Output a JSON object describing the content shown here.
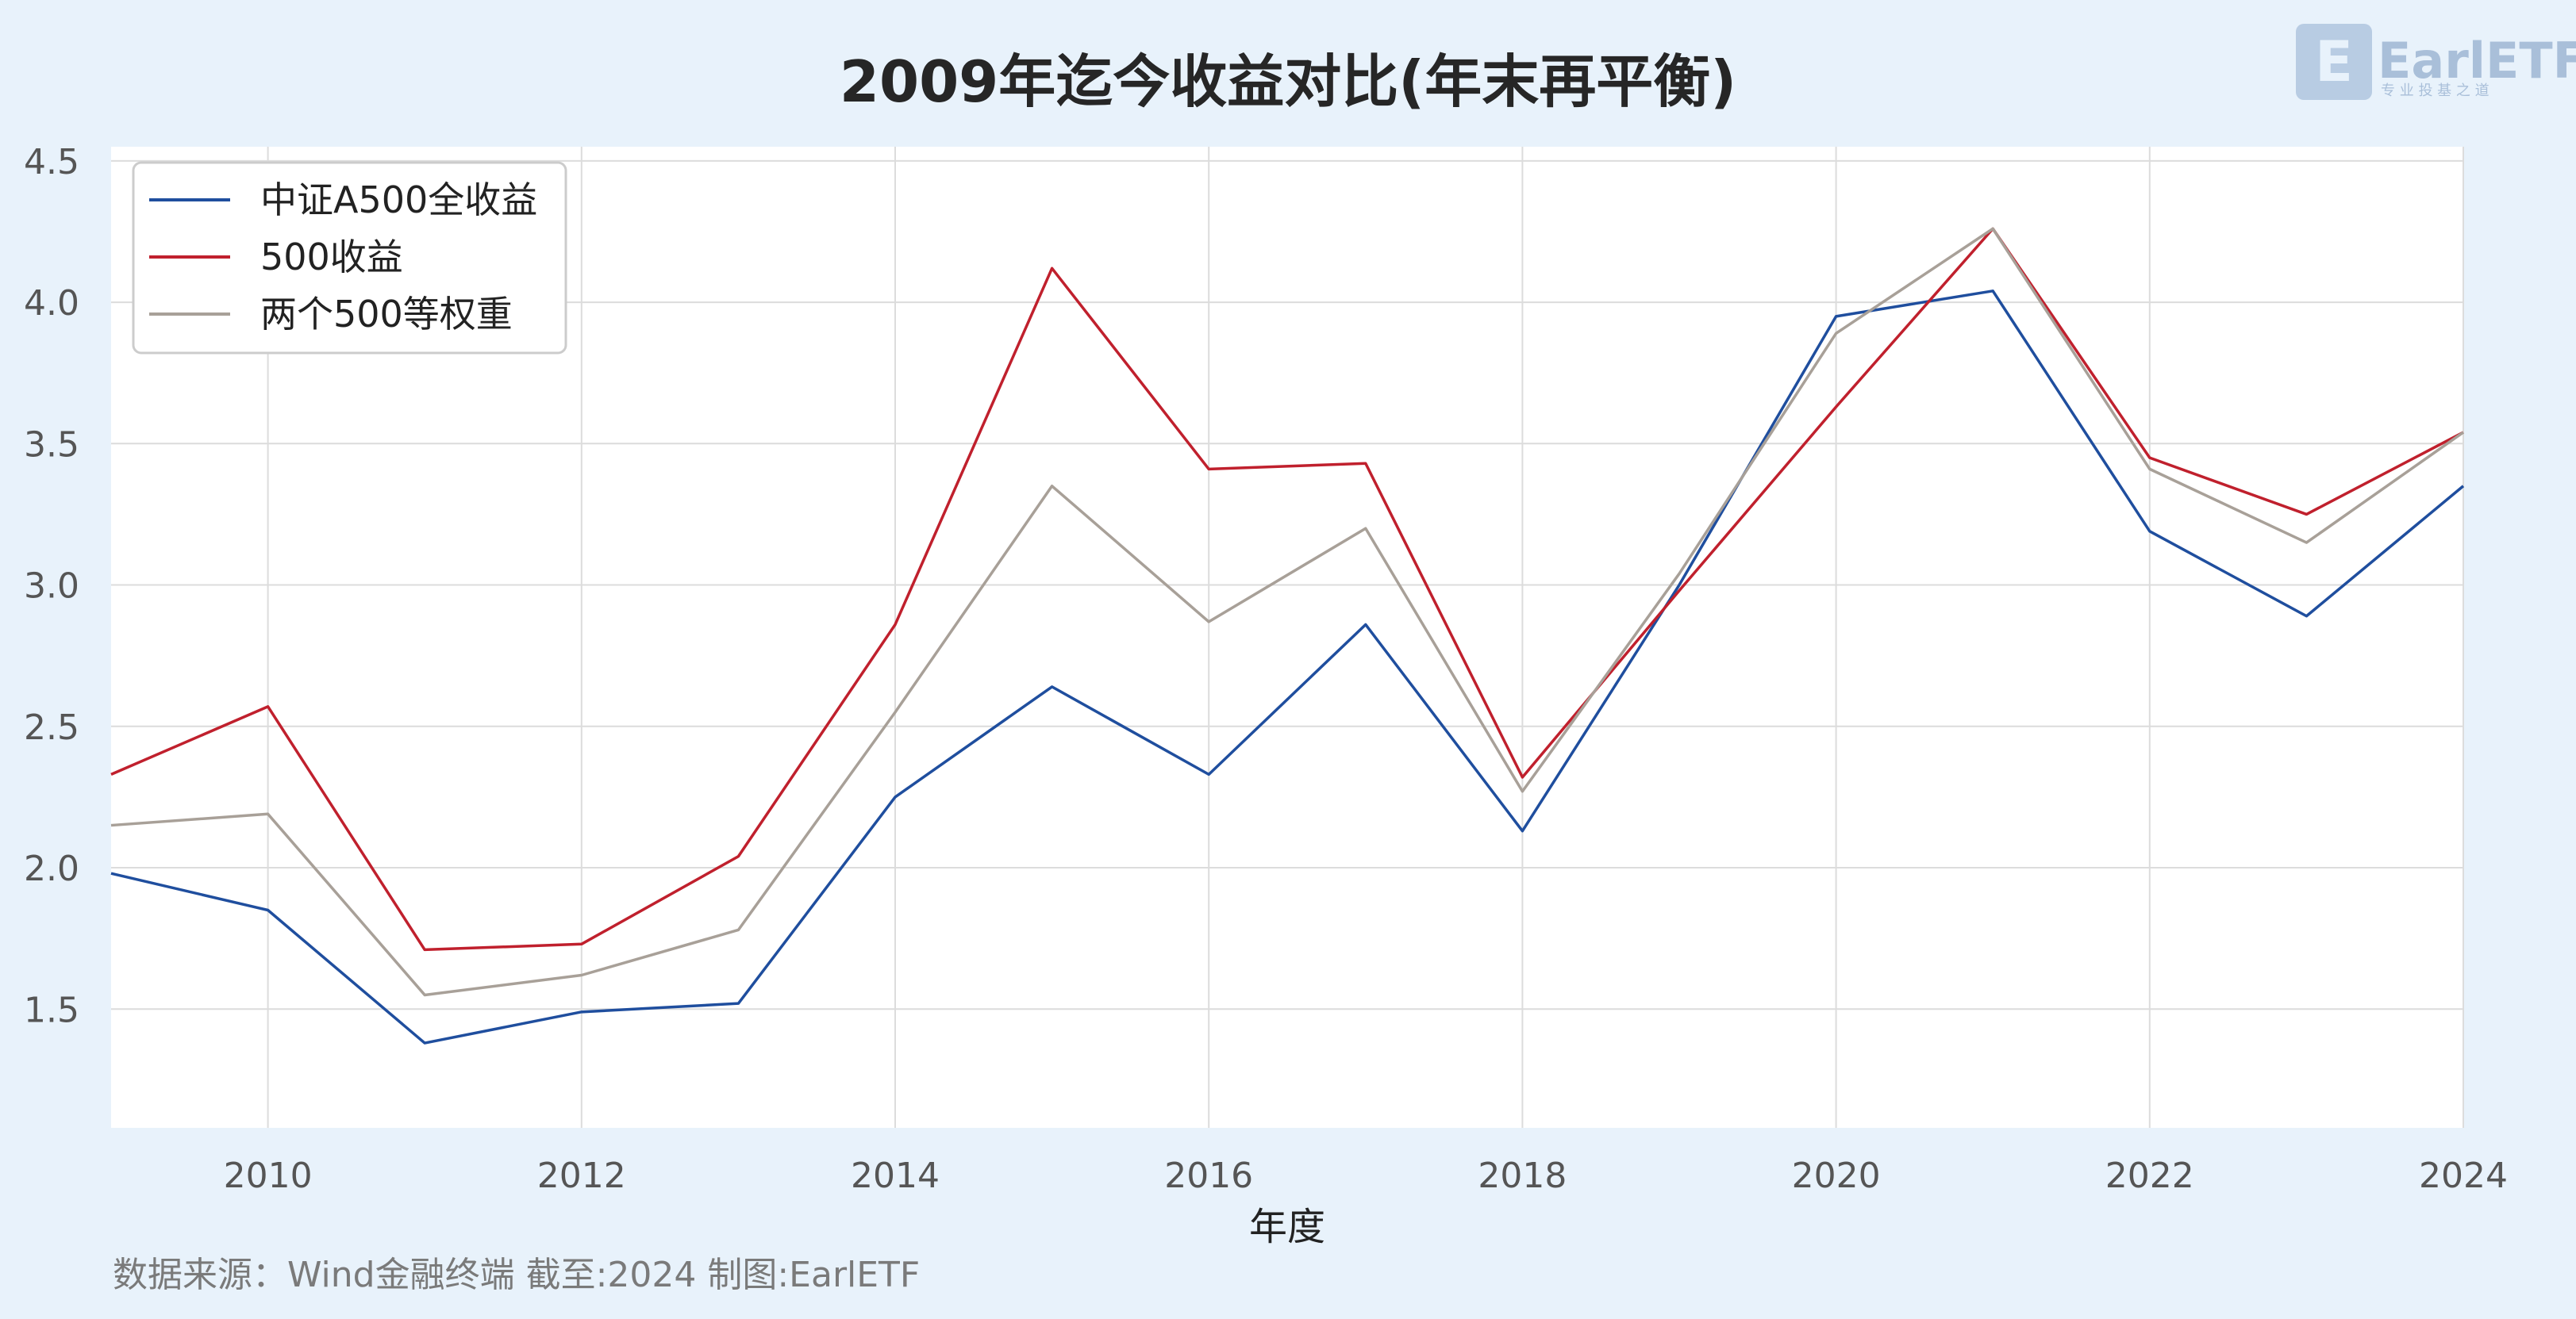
{
  "logo": {
    "name": "EarlETF",
    "tagline": "专 业 投 基 之 道"
  },
  "source_note": "数据来源：Wind金融终端 截至:2024 制图:EarlETF",
  "colors": {
    "background": "#e8f2fb",
    "plot_background": "#ffffff",
    "grid": "#dcdcdc"
  },
  "chart_data": {
    "type": "line",
    "title": "2009年迄今收益对比(年末再平衡)",
    "xlabel": "年度",
    "ylabel": "",
    "xlim": [
      2009,
      2024
    ],
    "ylim": [
      1.08,
      4.55
    ],
    "x_ticks": [
      2010,
      2012,
      2014,
      2016,
      2018,
      2020,
      2022,
      2024
    ],
    "y_ticks": [
      1.5,
      2.0,
      2.5,
      3.0,
      3.5,
      4.0,
      4.5
    ],
    "grid": true,
    "legend_position": "top-left",
    "x": [
      2009,
      2010,
      2011,
      2012,
      2013,
      2014,
      2015,
      2016,
      2017,
      2018,
      2019,
      2020,
      2021,
      2022,
      2023,
      2024
    ],
    "series": [
      {
        "name": "中证A500全收益",
        "color": "#1f4e9e",
        "values": [
          1.98,
          1.85,
          1.38,
          1.49,
          1.52,
          2.25,
          2.64,
          2.33,
          2.86,
          2.13,
          3.0,
          3.95,
          4.04,
          3.19,
          2.89,
          3.35
        ]
      },
      {
        "name": "500收益",
        "color": "#c0202d",
        "values": [
          2.33,
          2.57,
          1.71,
          1.73,
          2.04,
          2.86,
          4.12,
          3.41,
          3.43,
          2.32,
          2.98,
          3.63,
          4.26,
          3.45,
          3.25,
          3.54
        ]
      },
      {
        "name": "两个500等权重",
        "color": "#a8a098",
        "values": [
          2.15,
          2.19,
          1.55,
          1.62,
          1.78,
          2.55,
          3.35,
          2.87,
          3.2,
          2.27,
          3.04,
          3.89,
          4.26,
          3.41,
          3.15,
          3.54
        ]
      }
    ]
  }
}
